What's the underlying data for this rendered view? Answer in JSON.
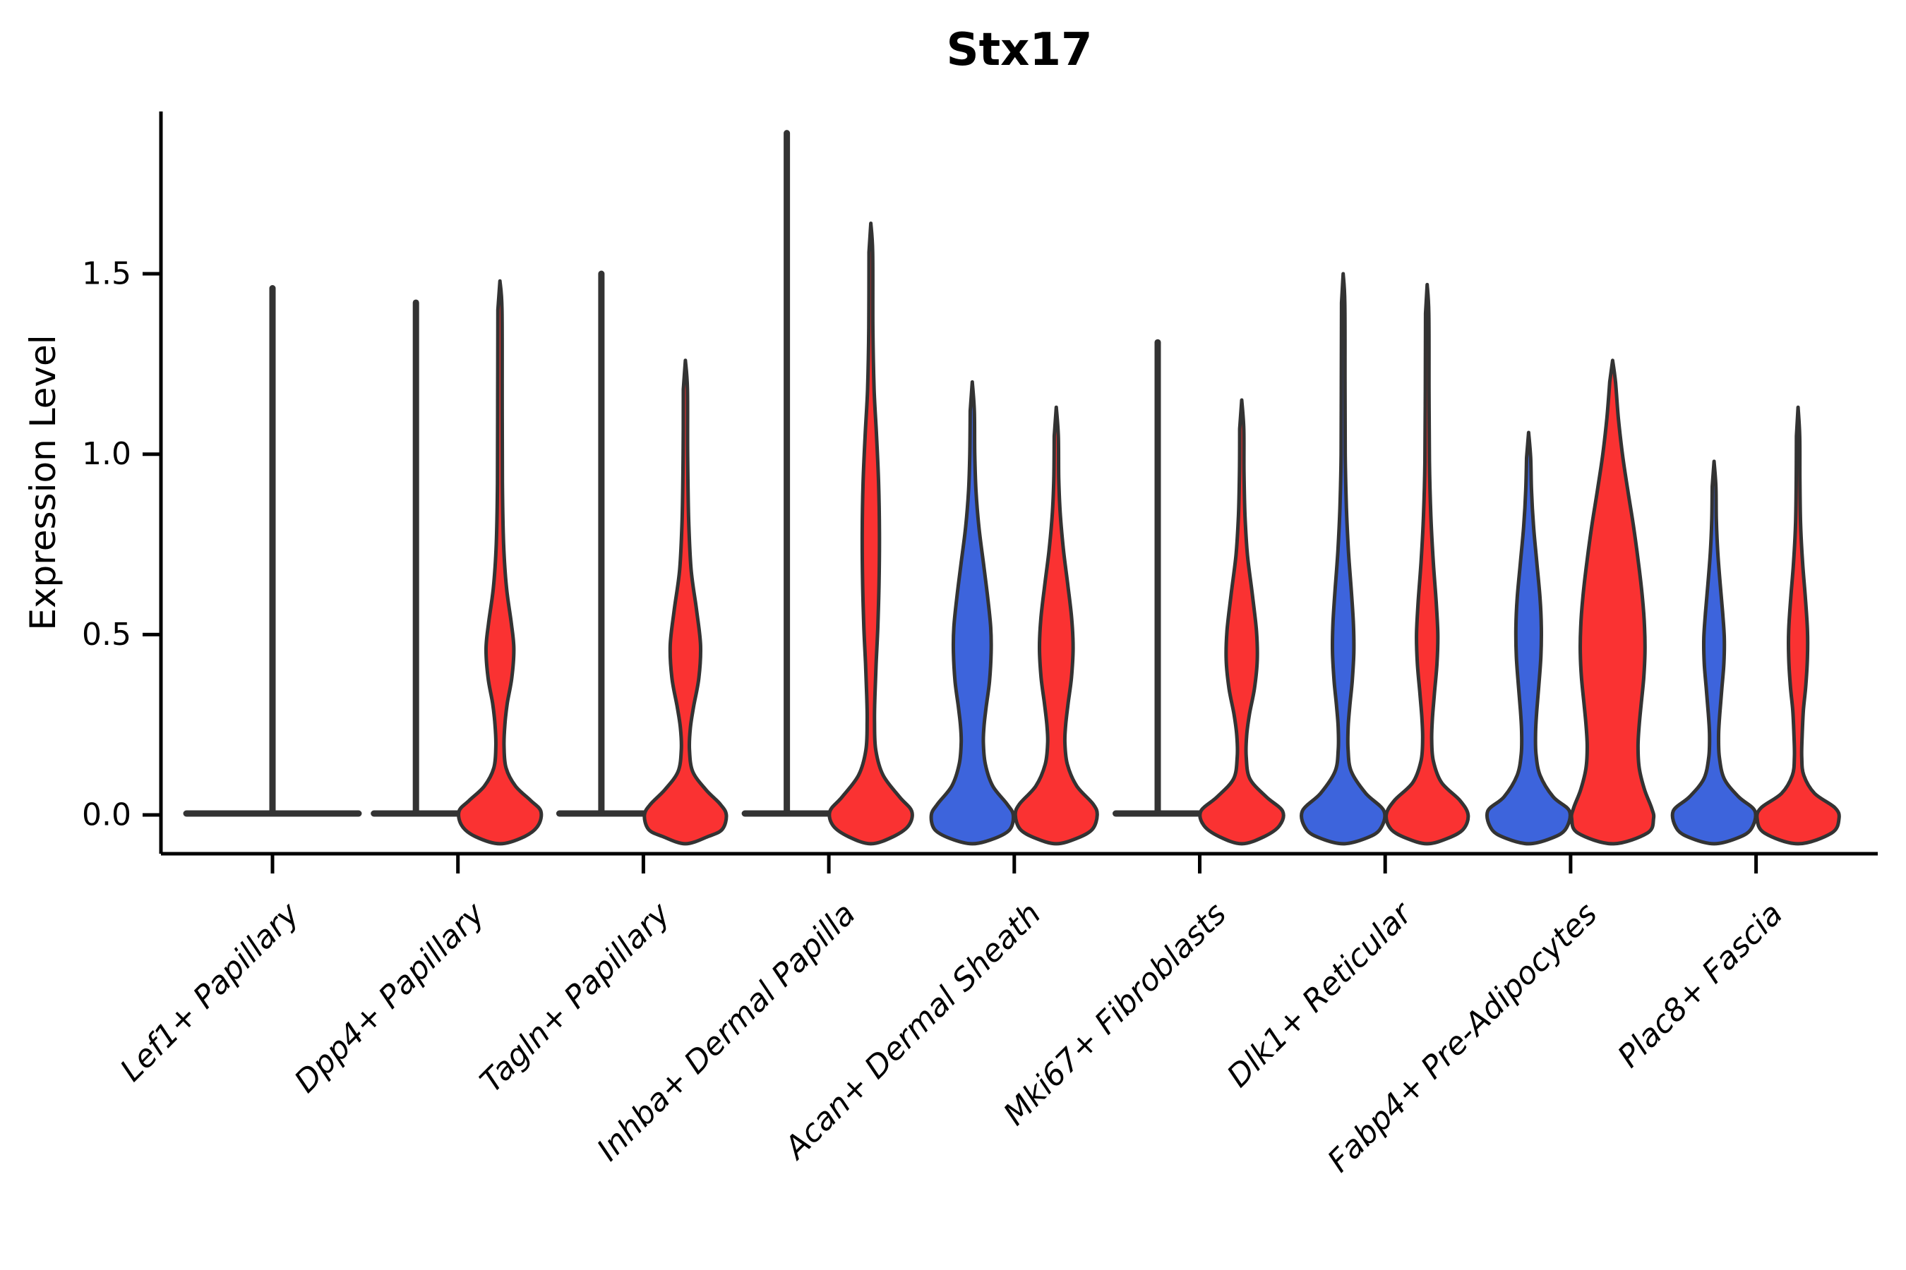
{
  "title": "Stx17",
  "y_axis": {
    "label": "Expression Level",
    "tick_labels": [
      "0.0",
      "0.5",
      "1.0",
      "1.5"
    ],
    "tick_values": [
      0.0,
      0.5,
      1.0,
      1.5
    ]
  },
  "colors": {
    "blue_fill": "#3D64DC",
    "red_fill": "#FA3232",
    "edge": "#333333",
    "axis": "#000000",
    "background": "#ffffff"
  },
  "chart_data": {
    "type": "violin",
    "title": "Stx17",
    "xlabel": "",
    "ylabel": "Expression Level",
    "yticks": [
      0.0,
      0.5,
      1.0,
      1.5
    ],
    "ylim": [
      -0.12,
      1.95
    ],
    "legend": "none",
    "grid": false,
    "categories": [
      "Lef1+ Papillary",
      "Dpp4+ Papillary",
      "Tagln+ Papillary",
      "Inhba+ Dermal Papilla",
      "Acan+ Dermal Sheath",
      "Mki67+ Fibroblasts",
      "Dlk1+ Reticular",
      "Fabp4+ Pre-Adipocytes",
      "Plac8+ Fascia"
    ],
    "violins": [
      {
        "category_index": 0,
        "category": "Lef1+ Papillary",
        "position": "center",
        "color": "none",
        "collapsed": true,
        "max_expression": 1.46,
        "flat_halfwidth": 2.05
      },
      {
        "category_index": 1,
        "category": "Dpp4+ Papillary",
        "position": "left",
        "color": "blue",
        "collapsed": true,
        "max_expression": 1.42,
        "flat_halfwidth": 1.0
      },
      {
        "category_index": 1,
        "category": "Dpp4+ Papillary",
        "position": "right",
        "color": "red",
        "collapsed": false,
        "max_expression": 1.48,
        "profile": [
          [
            1.48,
            0
          ],
          [
            1.4,
            0.05
          ],
          [
            1.15,
            0.055
          ],
          [
            0.92,
            0.06
          ],
          [
            0.75,
            0.09
          ],
          [
            0.63,
            0.16
          ],
          [
            0.53,
            0.28
          ],
          [
            0.46,
            0.34
          ],
          [
            0.38,
            0.29
          ],
          [
            0.31,
            0.18
          ],
          [
            0.25,
            0.12
          ],
          [
            0.19,
            0.1
          ],
          [
            0.13,
            0.15
          ],
          [
            0.08,
            0.38
          ],
          [
            0.04,
            0.75
          ],
          [
            0.01,
            1.0
          ],
          [
            -0.03,
            0.93
          ],
          [
            -0.06,
            0.6
          ],
          [
            -0.08,
            0
          ]
        ]
      },
      {
        "category_index": 2,
        "category": "Tagln+ Papillary",
        "position": "left",
        "color": "blue",
        "collapsed": true,
        "max_expression": 1.5,
        "flat_halfwidth": 1.0
      },
      {
        "category_index": 2,
        "category": "Tagln+ Papillary",
        "position": "right",
        "color": "red",
        "collapsed": false,
        "max_expression": 1.26,
        "profile": [
          [
            1.26,
            0
          ],
          [
            1.18,
            0.05
          ],
          [
            1.0,
            0.055
          ],
          [
            0.82,
            0.08
          ],
          [
            0.68,
            0.14
          ],
          [
            0.57,
            0.27
          ],
          [
            0.47,
            0.37
          ],
          [
            0.38,
            0.33
          ],
          [
            0.3,
            0.2
          ],
          [
            0.24,
            0.12
          ],
          [
            0.18,
            0.1
          ],
          [
            0.12,
            0.18
          ],
          [
            0.07,
            0.5
          ],
          [
            0.03,
            0.85
          ],
          [
            0.0,
            1.0
          ],
          [
            -0.04,
            0.9
          ],
          [
            -0.06,
            0.55
          ],
          [
            -0.08,
            0
          ]
        ]
      },
      {
        "category_index": 3,
        "category": "Inhba+ Dermal Papilla",
        "position": "left",
        "color": "blue",
        "collapsed": true,
        "max_expression": 1.89,
        "flat_halfwidth": 1.0
      },
      {
        "category_index": 3,
        "category": "Inhba+ Dermal Papilla",
        "position": "right",
        "color": "red",
        "collapsed": false,
        "max_expression": 1.64,
        "profile": [
          [
            1.64,
            0
          ],
          [
            1.56,
            0.045
          ],
          [
            1.35,
            0.05
          ],
          [
            1.18,
            0.08
          ],
          [
            1.05,
            0.14
          ],
          [
            0.92,
            0.19
          ],
          [
            0.78,
            0.21
          ],
          [
            0.64,
            0.2
          ],
          [
            0.52,
            0.17
          ],
          [
            0.42,
            0.13
          ],
          [
            0.33,
            0.1
          ],
          [
            0.26,
            0.09
          ],
          [
            0.18,
            0.12
          ],
          [
            0.11,
            0.3
          ],
          [
            0.05,
            0.7
          ],
          [
            0.01,
            1.0
          ],
          [
            -0.03,
            0.92
          ],
          [
            -0.06,
            0.55
          ],
          [
            -0.08,
            0
          ]
        ]
      },
      {
        "category_index": 4,
        "category": "Acan+ Dermal Sheath",
        "position": "left",
        "color": "blue",
        "collapsed": false,
        "max_expression": 1.2,
        "profile": [
          [
            1.2,
            0
          ],
          [
            1.12,
            0.05
          ],
          [
            1.0,
            0.06
          ],
          [
            0.9,
            0.09
          ],
          [
            0.8,
            0.16
          ],
          [
            0.7,
            0.27
          ],
          [
            0.6,
            0.38
          ],
          [
            0.52,
            0.45
          ],
          [
            0.45,
            0.46
          ],
          [
            0.37,
            0.42
          ],
          [
            0.3,
            0.34
          ],
          [
            0.25,
            0.29
          ],
          [
            0.2,
            0.27
          ],
          [
            0.14,
            0.32
          ],
          [
            0.08,
            0.5
          ],
          [
            0.03,
            0.85
          ],
          [
            0.0,
            1.0
          ],
          [
            -0.04,
            0.92
          ],
          [
            -0.065,
            0.55
          ],
          [
            -0.08,
            0
          ]
        ]
      },
      {
        "category_index": 4,
        "category": "Acan+ Dermal Sheath",
        "position": "right",
        "color": "red",
        "collapsed": false,
        "max_expression": 1.13,
        "profile": [
          [
            1.13,
            0
          ],
          [
            1.05,
            0.05
          ],
          [
            0.93,
            0.06
          ],
          [
            0.83,
            0.1
          ],
          [
            0.73,
            0.18
          ],
          [
            0.63,
            0.29
          ],
          [
            0.54,
            0.38
          ],
          [
            0.46,
            0.41
          ],
          [
            0.38,
            0.37
          ],
          [
            0.31,
            0.29
          ],
          [
            0.25,
            0.23
          ],
          [
            0.2,
            0.21
          ],
          [
            0.14,
            0.27
          ],
          [
            0.08,
            0.5
          ],
          [
            0.03,
            0.9
          ],
          [
            0.0,
            1.0
          ],
          [
            -0.04,
            0.88
          ],
          [
            -0.065,
            0.5
          ],
          [
            -0.08,
            0
          ]
        ]
      },
      {
        "category_index": 5,
        "category": "Mki67+ Fibroblasts",
        "position": "left",
        "color": "blue",
        "collapsed": true,
        "max_expression": 1.31,
        "flat_halfwidth": 1.0
      },
      {
        "category_index": 5,
        "category": "Mki67+ Fibroblasts",
        "position": "right",
        "color": "red",
        "collapsed": false,
        "max_expression": 1.15,
        "profile": [
          [
            1.15,
            0
          ],
          [
            1.07,
            0.05
          ],
          [
            0.95,
            0.055
          ],
          [
            0.83,
            0.08
          ],
          [
            0.72,
            0.14
          ],
          [
            0.61,
            0.26
          ],
          [
            0.51,
            0.36
          ],
          [
            0.43,
            0.38
          ],
          [
            0.35,
            0.31
          ],
          [
            0.28,
            0.19
          ],
          [
            0.22,
            0.12
          ],
          [
            0.16,
            0.11
          ],
          [
            0.1,
            0.2
          ],
          [
            0.05,
            0.6
          ],
          [
            0.01,
            1.0
          ],
          [
            -0.03,
            0.92
          ],
          [
            -0.06,
            0.55
          ],
          [
            -0.08,
            0
          ]
        ]
      },
      {
        "category_index": 6,
        "category": "Dlk1+ Reticular",
        "position": "left",
        "color": "blue",
        "collapsed": false,
        "max_expression": 1.5,
        "profile": [
          [
            1.5,
            0
          ],
          [
            1.42,
            0.04
          ],
          [
            1.2,
            0.045
          ],
          [
            1.0,
            0.05
          ],
          [
            0.85,
            0.08
          ],
          [
            0.73,
            0.13
          ],
          [
            0.62,
            0.2
          ],
          [
            0.53,
            0.25
          ],
          [
            0.45,
            0.26
          ],
          [
            0.37,
            0.22
          ],
          [
            0.3,
            0.16
          ],
          [
            0.24,
            0.12
          ],
          [
            0.18,
            0.12
          ],
          [
            0.12,
            0.2
          ],
          [
            0.06,
            0.55
          ],
          [
            0.01,
            1.0
          ],
          [
            -0.04,
            0.9
          ],
          [
            -0.065,
            0.55
          ],
          [
            -0.08,
            0
          ]
        ]
      },
      {
        "category_index": 6,
        "category": "Dlk1+ Reticular",
        "position": "right",
        "color": "red",
        "collapsed": false,
        "max_expression": 1.47,
        "profile": [
          [
            1.47,
            0
          ],
          [
            1.39,
            0.04
          ],
          [
            1.18,
            0.045
          ],
          [
            0.98,
            0.055
          ],
          [
            0.83,
            0.09
          ],
          [
            0.7,
            0.15
          ],
          [
            0.59,
            0.22
          ],
          [
            0.5,
            0.26
          ],
          [
            0.42,
            0.24
          ],
          [
            0.34,
            0.18
          ],
          [
            0.27,
            0.13
          ],
          [
            0.21,
            0.11
          ],
          [
            0.15,
            0.15
          ],
          [
            0.09,
            0.35
          ],
          [
            0.04,
            0.8
          ],
          [
            0.0,
            1.0
          ],
          [
            -0.04,
            0.88
          ],
          [
            -0.065,
            0.5
          ],
          [
            -0.08,
            0
          ]
        ]
      },
      {
        "category_index": 7,
        "category": "Fabp4+ Pre-Adipocytes",
        "position": "left",
        "color": "blue",
        "collapsed": false,
        "max_expression": 1.06,
        "profile": [
          [
            1.06,
            0
          ],
          [
            0.99,
            0.05
          ],
          [
            0.9,
            0.07
          ],
          [
            0.8,
            0.12
          ],
          [
            0.7,
            0.2
          ],
          [
            0.6,
            0.28
          ],
          [
            0.52,
            0.31
          ],
          [
            0.44,
            0.3
          ],
          [
            0.36,
            0.25
          ],
          [
            0.29,
            0.2
          ],
          [
            0.23,
            0.17
          ],
          [
            0.17,
            0.18
          ],
          [
            0.11,
            0.28
          ],
          [
            0.05,
            0.6
          ],
          [
            0.01,
            1.0
          ],
          [
            -0.04,
            0.9
          ],
          [
            -0.065,
            0.55
          ],
          [
            -0.08,
            0
          ]
        ]
      },
      {
        "category_index": 7,
        "category": "Fabp4+ Pre-Adipocytes",
        "position": "right",
        "color": "red",
        "collapsed": false,
        "max_expression": 1.26,
        "profile": [
          [
            1.26,
            0
          ],
          [
            1.2,
            0.07
          ],
          [
            1.1,
            0.14
          ],
          [
            1.0,
            0.24
          ],
          [
            0.9,
            0.37
          ],
          [
            0.8,
            0.51
          ],
          [
            0.7,
            0.63
          ],
          [
            0.6,
            0.73
          ],
          [
            0.52,
            0.78
          ],
          [
            0.45,
            0.79
          ],
          [
            0.38,
            0.76
          ],
          [
            0.31,
            0.7
          ],
          [
            0.25,
            0.65
          ],
          [
            0.19,
            0.62
          ],
          [
            0.13,
            0.65
          ],
          [
            0.07,
            0.78
          ],
          [
            0.02,
            0.95
          ],
          [
            -0.01,
            1.0
          ],
          [
            -0.05,
            0.85
          ],
          [
            -0.08,
            0
          ]
        ]
      },
      {
        "category_index": 8,
        "category": "Plac8+ Fascia",
        "position": "left",
        "color": "blue",
        "collapsed": false,
        "max_expression": 0.98,
        "profile": [
          [
            0.98,
            0
          ],
          [
            0.91,
            0.045
          ],
          [
            0.82,
            0.055
          ],
          [
            0.73,
            0.09
          ],
          [
            0.64,
            0.15
          ],
          [
            0.56,
            0.21
          ],
          [
            0.49,
            0.25
          ],
          [
            0.42,
            0.24
          ],
          [
            0.35,
            0.19
          ],
          [
            0.28,
            0.14
          ],
          [
            0.22,
            0.11
          ],
          [
            0.16,
            0.13
          ],
          [
            0.1,
            0.25
          ],
          [
            0.05,
            0.6
          ],
          [
            0.01,
            1.0
          ],
          [
            -0.04,
            0.9
          ],
          [
            -0.065,
            0.55
          ],
          [
            -0.08,
            0
          ]
        ]
      },
      {
        "category_index": 8,
        "category": "Plac8+ Fascia",
        "position": "right",
        "color": "red",
        "collapsed": false,
        "max_expression": 1.13,
        "profile": [
          [
            1.13,
            0
          ],
          [
            1.05,
            0.04
          ],
          [
            0.93,
            0.045
          ],
          [
            0.81,
            0.06
          ],
          [
            0.7,
            0.11
          ],
          [
            0.6,
            0.18
          ],
          [
            0.51,
            0.23
          ],
          [
            0.44,
            0.23
          ],
          [
            0.36,
            0.19
          ],
          [
            0.29,
            0.13
          ],
          [
            0.22,
            0.1
          ],
          [
            0.16,
            0.09
          ],
          [
            0.11,
            0.14
          ],
          [
            0.06,
            0.4
          ],
          [
            0.02,
            0.9
          ],
          [
            -0.01,
            1.0
          ],
          [
            -0.05,
            0.82
          ],
          [
            -0.08,
            0
          ]
        ]
      }
    ]
  }
}
